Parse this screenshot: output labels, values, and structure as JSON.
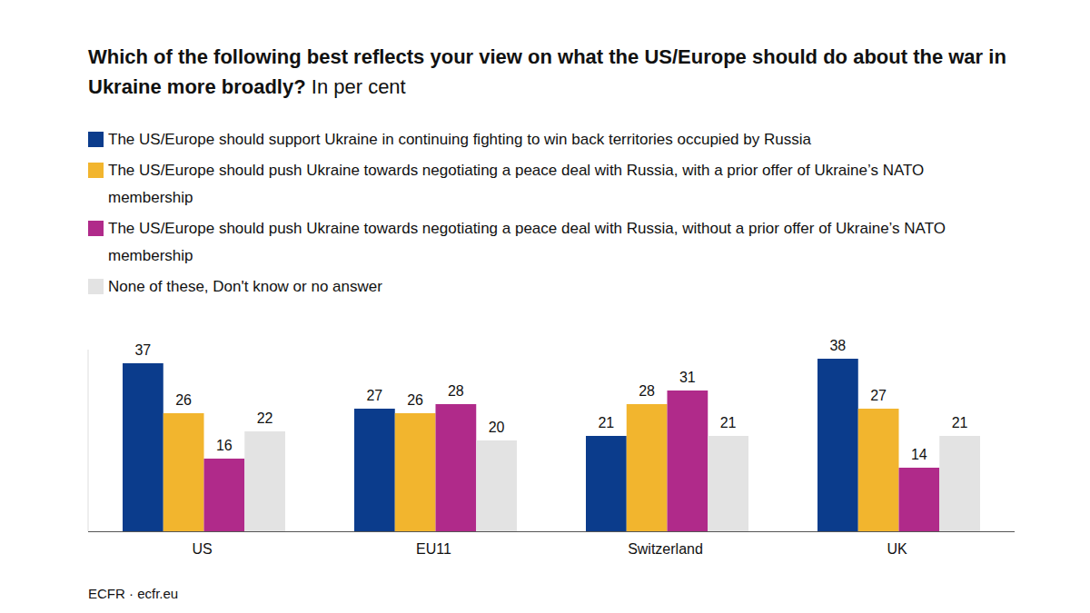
{
  "chart_data": {
    "type": "bar",
    "title": "Which of the following best reflects your view on what the US/Europe should do about the war in Ukraine more broadly?",
    "subtitle": "In per cent",
    "source": "ECFR · ecfr.eu",
    "categories": [
      "US",
      "EU11",
      "Switzerland",
      "UK"
    ],
    "series": [
      {
        "name": "The US/Europe should support Ukraine in continuing fighting to win back territories occupied by Russia",
        "color": "#0b3c8c",
        "values": [
          37,
          27,
          21,
          38
        ]
      },
      {
        "name": "The US/Europe should push Ukraine towards negotiating a peace deal with Russia, with a prior offer of Ukraine’s NATO membership",
        "color": "#f2b52e",
        "values": [
          26,
          26,
          28,
          27
        ]
      },
      {
        "name": "The US/Europe should push Ukraine towards negotiating a peace deal with Russia, without a prior offer of Ukraine’s NATO membership",
        "color": "#b02a8a",
        "values": [
          16,
          28,
          31,
          14
        ]
      },
      {
        "name": "None of these, Don't know or no answer",
        "color": "#e3e3e3",
        "values": [
          22,
          20,
          21,
          21
        ]
      }
    ],
    "ylim": [
      0,
      40
    ],
    "data_labels": true,
    "tick_labels": "x",
    "grid": false
  }
}
